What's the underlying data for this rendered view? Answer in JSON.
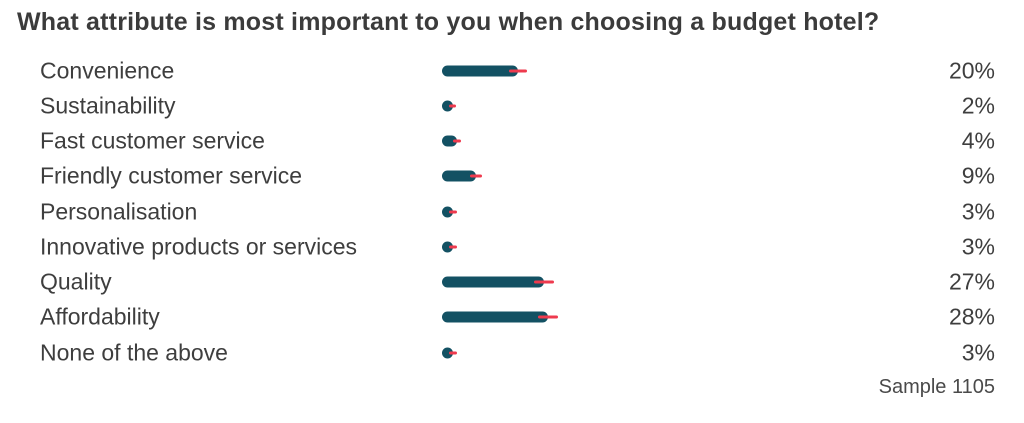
{
  "title": "What attribute is most important to you when choosing a budget hotel?",
  "sample_label": "Sample 1105",
  "colors": {
    "bar": "#135163",
    "error_line": "#ee3a4e",
    "title_text": "#3b3b3b",
    "label_text": "#3e3e3e"
  },
  "chart_data": {
    "type": "bar",
    "orientation": "horizontal",
    "title": "What attribute is most important to you when choosing a budget hotel?",
    "xlabel": "",
    "ylabel": "",
    "xlim": [
      0,
      100
    ],
    "grid": false,
    "legend": false,
    "categories": [
      "Convenience",
      "Sustainability",
      "Fast customer service",
      "Friendly customer service",
      "Personalisation",
      "Innovative products or services",
      "Quality",
      "Affordability",
      "None of the above"
    ],
    "values": [
      20,
      2,
      4,
      9,
      3,
      3,
      27,
      28,
      3
    ],
    "value_labels": [
      "20%",
      "2%",
      "4%",
      "9%",
      "3%",
      "3%",
      "27%",
      "28%",
      "3%"
    ],
    "error_pct": [
      2.4,
      0.8,
      1.1,
      1.6,
      1.1,
      1.1,
      2.6,
      2.6,
      1.1
    ],
    "annotations": [
      "Sample 1105"
    ]
  }
}
